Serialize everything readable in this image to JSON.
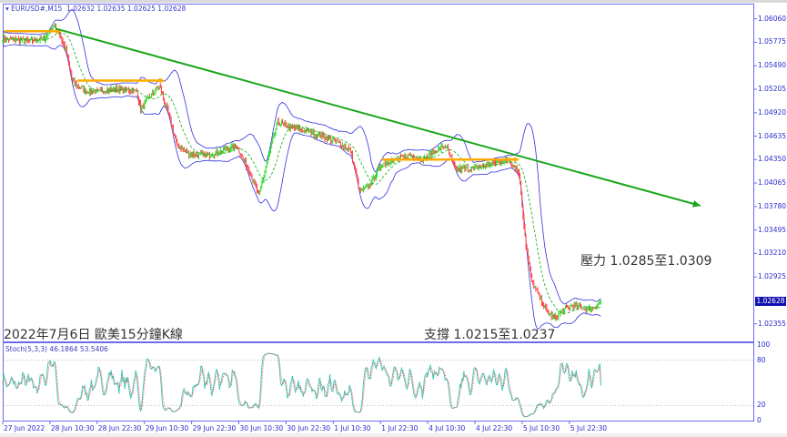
{
  "header": {
    "symbol": "EURUSD#,M15",
    "ohlc": "1.02632 1.02635 1.02625 1.02628"
  },
  "stoch_header": "Stoch(5,3,3) 46.1864 53.5406",
  "annotations": {
    "title": "2022年7月6日 歐美15分鐘K線",
    "support": "支撐 1.0215至1.0237",
    "resistance": "壓力 1.0285至1.0309"
  },
  "colors": {
    "frame": "#6b6bf0",
    "bull": "#22dd22",
    "bear": "#ff4040",
    "bands": "#3030e0",
    "trendline": "#1aa61a",
    "levels": "#ffaa00",
    "stoch_main": "#40c8b8",
    "stoch_signal": "#ff3030",
    "axis_text": "#2a2ad0"
  },
  "chart_data": [
    {
      "type": "candlestick",
      "timeframe": "M15",
      "price_axis_ticks": [
        "1.06060",
        "1.05775",
        "1.05490",
        "1.05205",
        "1.04920",
        "1.04635",
        "1.04350",
        "1.04065",
        "1.03780",
        "1.03495",
        "1.03210",
        "1.02925",
        "1.02355"
      ],
      "current_price": "1.02628",
      "ylim": [
        1.0198,
        1.065
      ],
      "time_ticks": [
        "27 Jun 2022",
        "28 Jun 10:30",
        "28 Jun 22:30",
        "29 Jun 10:30",
        "29 Jun 22:30",
        "30 Jun 10:30",
        "30 Jun 22:30",
        "1 Jul 10:30",
        "1 Jul 22:30",
        "4 Jul 10:30",
        "4 Jul 22:30",
        "5 Jul 10:30",
        "5 Jul 22:30"
      ],
      "close_path_bar_price": [
        [
          0,
          1.0582
        ],
        [
          25,
          1.0579
        ],
        [
          43,
          1.0582
        ],
        [
          51,
          1.0598
        ],
        [
          57,
          1.059
        ],
        [
          64,
          1.0568
        ],
        [
          71,
          1.0529
        ],
        [
          85,
          1.0518
        ],
        [
          99,
          1.0518
        ],
        [
          117,
          1.0521
        ],
        [
          136,
          1.0518
        ],
        [
          140,
          1.0496
        ],
        [
          150,
          1.0513
        ],
        [
          159,
          1.0524
        ],
        [
          168,
          1.0491
        ],
        [
          177,
          1.0452
        ],
        [
          191,
          1.0441
        ],
        [
          210,
          1.0441
        ],
        [
          223,
          1.0446
        ],
        [
          237,
          1.0452
        ],
        [
          251,
          1.0419
        ],
        [
          260,
          1.0391
        ],
        [
          270,
          1.0441
        ],
        [
          279,
          1.048
        ],
        [
          293,
          1.0474
        ],
        [
          311,
          1.0469
        ],
        [
          325,
          1.0463
        ],
        [
          339,
          1.0457
        ],
        [
          353,
          1.0446
        ],
        [
          362,
          1.0397
        ],
        [
          371,
          1.0402
        ],
        [
          385,
          1.043
        ],
        [
          399,
          1.0435
        ],
        [
          413,
          1.0441
        ],
        [
          427,
          1.0435
        ],
        [
          440,
          1.0446
        ],
        [
          450,
          1.0452
        ],
        [
          459,
          1.0424
        ],
        [
          477,
          1.0424
        ],
        [
          496,
          1.043
        ],
        [
          514,
          1.0435
        ],
        [
          524,
          1.0419
        ],
        [
          531,
          1.033
        ],
        [
          537,
          1.0286
        ],
        [
          551,
          1.0253
        ],
        [
          560,
          1.0242
        ],
        [
          570,
          1.0253
        ],
        [
          579,
          1.0258
        ],
        [
          588,
          1.0255
        ],
        [
          597,
          1.0253
        ],
        [
          607,
          1.0263
        ]
      ],
      "indicators": [
        "Bollinger Bands",
        "Stochastic(5,3,3)"
      ],
      "trendline": {
        "from": [
          54,
          1.0594
        ],
        "to": [
          708,
          1.0379
        ],
        "arrow": true
      },
      "horizontal_levels": [
        {
          "from_bar": 2,
          "to_bar": 54,
          "price": 1.0591
        },
        {
          "from_bar": 76,
          "to_bar": 159,
          "price": 1.0531
        },
        {
          "from_bar": 385,
          "to_bar": 519,
          "price": 1.0435
        }
      ],
      "stochastic": {
        "main": 46.1864,
        "signal": 53.5406,
        "levels": [
          80,
          20
        ],
        "ylim": [
          0,
          100
        ],
        "ticks": [
          "100",
          "80",
          "20",
          "0"
        ]
      }
    }
  ]
}
